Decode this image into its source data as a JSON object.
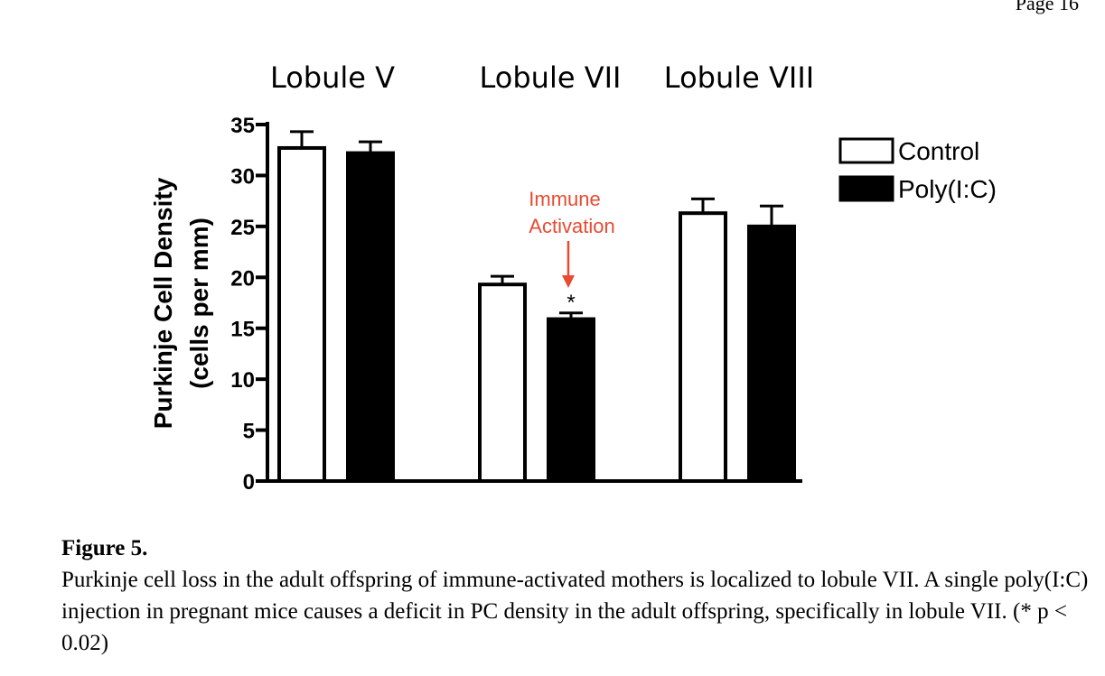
{
  "page": {
    "number_label": "Page 16"
  },
  "chart_data": {
    "type": "bar",
    "groups": [
      "Lobule V",
      "Lobule VII",
      "Lobule VIII"
    ],
    "series": [
      {
        "name": "Control",
        "fill": "#ffffff",
        "values": [
          32.7,
          19.3,
          26.3
        ],
        "errors": [
          1.6,
          0.8,
          1.4
        ]
      },
      {
        "name": "Poly(I:C)",
        "fill": "#000000",
        "values": [
          32.2,
          15.9,
          25.0
        ],
        "errors": [
          1.1,
          0.6,
          2.0
        ]
      }
    ],
    "ylabel_line1": "Purkinje Cell Density",
    "ylabel_line2": "(cells per mm)",
    "ylim": [
      0,
      35
    ],
    "yticks": [
      "0",
      "5",
      "10",
      "15",
      "20",
      "25",
      "30",
      "35"
    ],
    "significance": {
      "group": 1,
      "series": 1,
      "marker": "*"
    },
    "annotation": {
      "line1": "Immune",
      "line2": "Activation",
      "color": "#e84a32"
    },
    "legend_position": "top-right"
  },
  "caption": {
    "title": "Figure 5.",
    "body": "Purkinje cell loss in the adult offspring of immune-activated mothers is localized to lobule VII. A single poly(I:C) injection in pregnant mice causes a deficit in PC density in the adult offspring, specifically in lobule VII. (* p < 0.02)"
  }
}
